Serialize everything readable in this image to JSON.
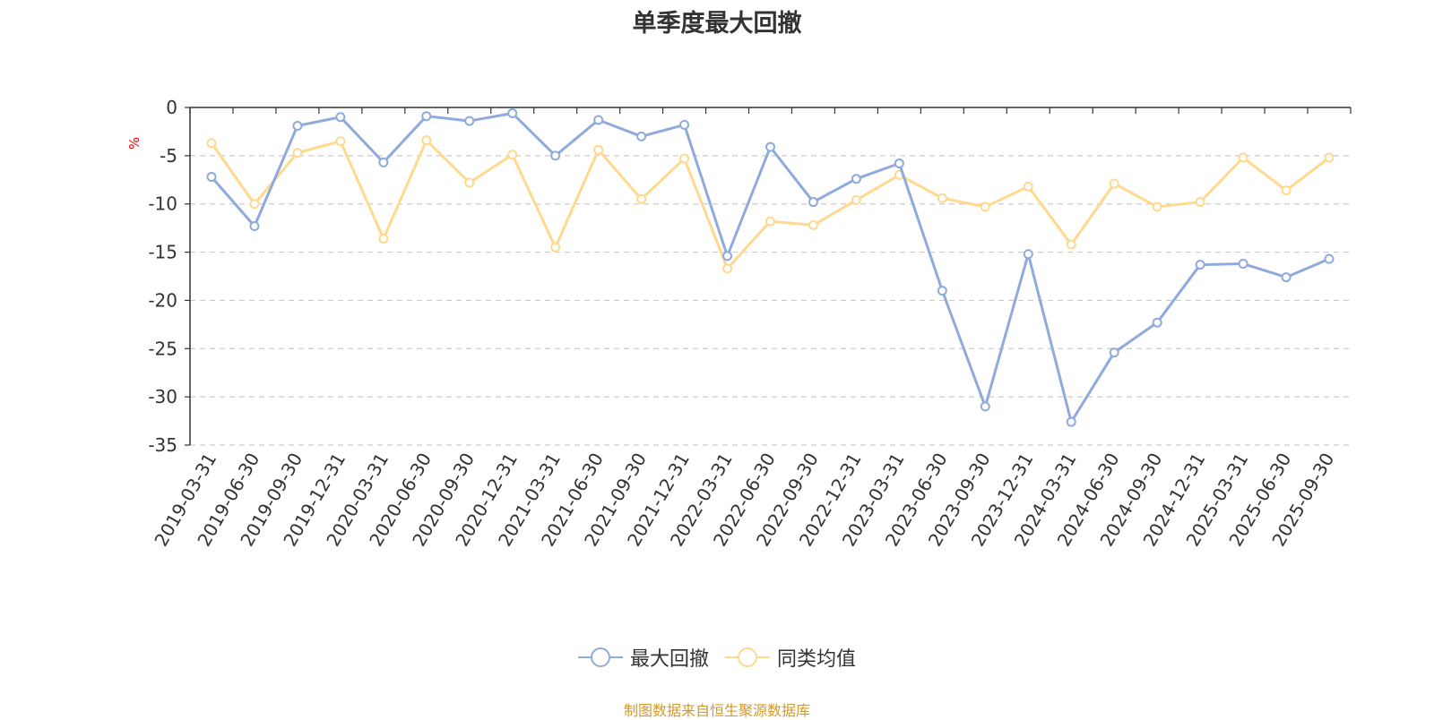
{
  "source_note": "制图数据来自恒生聚源数据库",
  "chart_data": {
    "type": "line",
    "title": "单季度最大回撤",
    "xlabel": "",
    "ylabel": "%",
    "ylim": [
      -35,
      0
    ],
    "yticks": [
      0,
      -5,
      -10,
      -15,
      -20,
      -25,
      -30,
      -35
    ],
    "grid": true,
    "legend_position": "bottom-center",
    "categories": [
      "2019-03-31",
      "2019-06-30",
      "2019-09-30",
      "2019-12-31",
      "2020-03-31",
      "2020-06-30",
      "2020-09-30",
      "2020-12-31",
      "2021-03-31",
      "2021-06-30",
      "2021-09-30",
      "2021-12-31",
      "2022-03-31",
      "2022-06-30",
      "2022-09-30",
      "2022-12-31",
      "2023-03-31",
      "2023-06-30",
      "2023-09-30",
      "2023-12-31",
      "2024-03-31",
      "2024-06-30",
      "2024-09-30",
      "2024-12-31",
      "2025-03-31",
      "2025-06-30",
      "2025-09-30"
    ],
    "series": [
      {
        "name": "最大回撤",
        "color": "#8faadc",
        "values": [
          -7.2,
          -12.3,
          -1.9,
          -1.0,
          -5.7,
          -0.9,
          -1.4,
          -0.6,
          -5.0,
          -1.3,
          -3.0,
          -1.8,
          -15.4,
          -4.1,
          -9.8,
          -7.4,
          -5.8,
          -19.0,
          -31.0,
          -15.2,
          -32.6,
          -25.4,
          -22.3,
          -16.3,
          -16.2,
          -17.6,
          -15.7
        ]
      },
      {
        "name": "同类均值",
        "color": "#ffd98e",
        "values": [
          -3.7,
          -10.0,
          -4.7,
          -3.5,
          -13.6,
          -3.4,
          -7.8,
          -4.9,
          -14.5,
          -4.4,
          -9.5,
          -5.3,
          -16.7,
          -11.8,
          -12.2,
          -9.6,
          -7.0,
          -9.4,
          -10.3,
          -8.2,
          -14.2,
          -7.9,
          -10.3,
          -9.8,
          -5.2,
          -8.6,
          -5.2
        ]
      }
    ]
  }
}
